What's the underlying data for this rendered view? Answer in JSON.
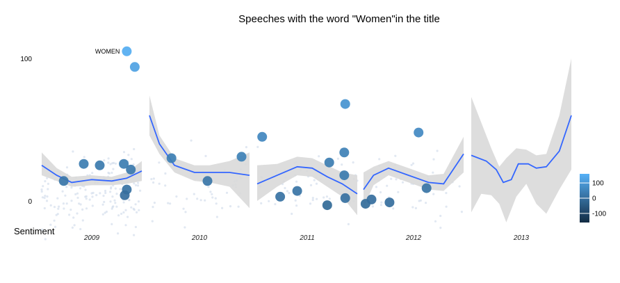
{
  "chart_data": {
    "type": "scatter",
    "title": "Speeches with the word \"Women\"in the title",
    "ylabel": "Sentiment",
    "xlabel": "",
    "ylim": [
      -15,
      118
    ],
    "y_ticks": [
      0,
      100
    ],
    "grid": false,
    "legend": {
      "position": "right",
      "type": "colorbar",
      "ticks": [
        100,
        0,
        -100
      ],
      "range": [
        -160,
        160
      ],
      "colors": [
        "#132B43",
        "#56B1F7"
      ]
    },
    "smooth_color": "#3366FF",
    "band_color": "#D9D9D9",
    "facets": [
      {
        "label": "2009",
        "points": [
          {
            "x": 0.22,
            "y": 14,
            "c": 20
          },
          {
            "x": 0.42,
            "y": 26,
            "c": 35
          },
          {
            "x": 0.58,
            "y": 25,
            "c": 30
          },
          {
            "x": 0.82,
            "y": 26,
            "c": 35
          },
          {
            "x": 0.89,
            "y": 22,
            "c": 25
          },
          {
            "x": 0.85,
            "y": 8,
            "c": 10
          },
          {
            "x": 0.83,
            "y": 4,
            "c": 0
          },
          {
            "x": 0.85,
            "y": 105,
            "c": 150,
            "label": "WOMEN"
          },
          {
            "x": 0.93,
            "y": 94,
            "c": 125
          }
        ],
        "smooth": [
          [
            0.0,
            25
          ],
          [
            0.15,
            18
          ],
          [
            0.3,
            13
          ],
          [
            0.5,
            15
          ],
          [
            0.7,
            14
          ],
          [
            0.85,
            16
          ],
          [
            1.0,
            21
          ]
        ],
        "band": [
          [
            0.0,
            34,
            18
          ],
          [
            0.15,
            23,
            14
          ],
          [
            0.3,
            17,
            10
          ],
          [
            0.5,
            18,
            11
          ],
          [
            0.7,
            17,
            11
          ],
          [
            0.85,
            20,
            12
          ],
          [
            1.0,
            28,
            14
          ]
        ]
      },
      {
        "label": "2010",
        "points": [
          {
            "x": 0.22,
            "y": 30,
            "c": 40
          },
          {
            "x": 0.58,
            "y": 14,
            "c": 20
          },
          {
            "x": 0.92,
            "y": 31,
            "c": 45
          }
        ],
        "smooth": [
          [
            0.0,
            60
          ],
          [
            0.1,
            40
          ],
          [
            0.25,
            25
          ],
          [
            0.45,
            20
          ],
          [
            0.6,
            20
          ],
          [
            0.8,
            20
          ],
          [
            1.0,
            18
          ]
        ],
        "band": [
          [
            0.0,
            74,
            46
          ],
          [
            0.1,
            46,
            33
          ],
          [
            0.25,
            30,
            20
          ],
          [
            0.45,
            25,
            14
          ],
          [
            0.6,
            25,
            13
          ],
          [
            0.8,
            28,
            10
          ],
          [
            1.0,
            34,
            -5
          ]
        ]
      },
      {
        "label": "2011",
        "points": [
          {
            "x": 0.05,
            "y": 45,
            "c": 60
          },
          {
            "x": 0.23,
            "y": 3,
            "c": 10
          },
          {
            "x": 0.4,
            "y": 7,
            "c": 15
          },
          {
            "x": 0.7,
            "y": -3,
            "c": -10
          },
          {
            "x": 0.72,
            "y": 27,
            "c": 35
          },
          {
            "x": 0.87,
            "y": 18,
            "c": 30
          },
          {
            "x": 0.87,
            "y": 34,
            "c": 45
          },
          {
            "x": 0.88,
            "y": 2,
            "c": 5
          },
          {
            "x": 0.88,
            "y": 68,
            "c": 90
          }
        ],
        "smooth": [
          [
            0.0,
            12
          ],
          [
            0.2,
            18
          ],
          [
            0.4,
            24
          ],
          [
            0.55,
            23
          ],
          [
            0.7,
            17
          ],
          [
            0.85,
            12
          ],
          [
            1.0,
            5
          ]
        ],
        "band": [
          [
            0.0,
            25,
            0
          ],
          [
            0.2,
            26,
            10
          ],
          [
            0.4,
            31,
            18
          ],
          [
            0.55,
            30,
            17
          ],
          [
            0.7,
            25,
            10
          ],
          [
            0.85,
            20,
            3
          ],
          [
            1.0,
            18,
            -10
          ]
        ]
      },
      {
        "label": "2012",
        "points": [
          {
            "x": 0.02,
            "y": -2,
            "c": -5
          },
          {
            "x": 0.08,
            "y": 1,
            "c": 0
          },
          {
            "x": 0.26,
            "y": -1,
            "c": 0
          },
          {
            "x": 0.55,
            "y": 48,
            "c": 65
          },
          {
            "x": 0.63,
            "y": 9,
            "c": 15
          }
        ],
        "smooth": [
          [
            0.0,
            8
          ],
          [
            0.1,
            18
          ],
          [
            0.25,
            23
          ],
          [
            0.45,
            18
          ],
          [
            0.65,
            13
          ],
          [
            0.8,
            12
          ],
          [
            1.0,
            33
          ]
        ],
        "band": [
          [
            0.0,
            20,
            -5
          ],
          [
            0.1,
            24,
            11
          ],
          [
            0.25,
            28,
            18
          ],
          [
            0.45,
            23,
            13
          ],
          [
            0.65,
            18,
            8
          ],
          [
            0.8,
            19,
            7
          ],
          [
            1.0,
            45,
            20
          ]
        ]
      },
      {
        "label": "2013",
        "points": [],
        "smooth": [
          [
            0.0,
            32
          ],
          [
            0.15,
            28
          ],
          [
            0.25,
            22
          ],
          [
            0.32,
            13
          ],
          [
            0.4,
            15
          ],
          [
            0.47,
            26
          ],
          [
            0.57,
            26
          ],
          [
            0.65,
            23
          ],
          [
            0.75,
            24
          ],
          [
            0.88,
            35
          ],
          [
            1.0,
            60
          ]
        ],
        "band": [
          [
            0.0,
            73,
            -8
          ],
          [
            0.1,
            55,
            5
          ],
          [
            0.2,
            37,
            4
          ],
          [
            0.28,
            24,
            -2
          ],
          [
            0.35,
            30,
            -15
          ],
          [
            0.45,
            37,
            3
          ],
          [
            0.55,
            36,
            12
          ],
          [
            0.65,
            32,
            -2
          ],
          [
            0.75,
            33,
            -9
          ],
          [
            0.88,
            60,
            8
          ],
          [
            1.0,
            100,
            22
          ]
        ]
      }
    ]
  }
}
